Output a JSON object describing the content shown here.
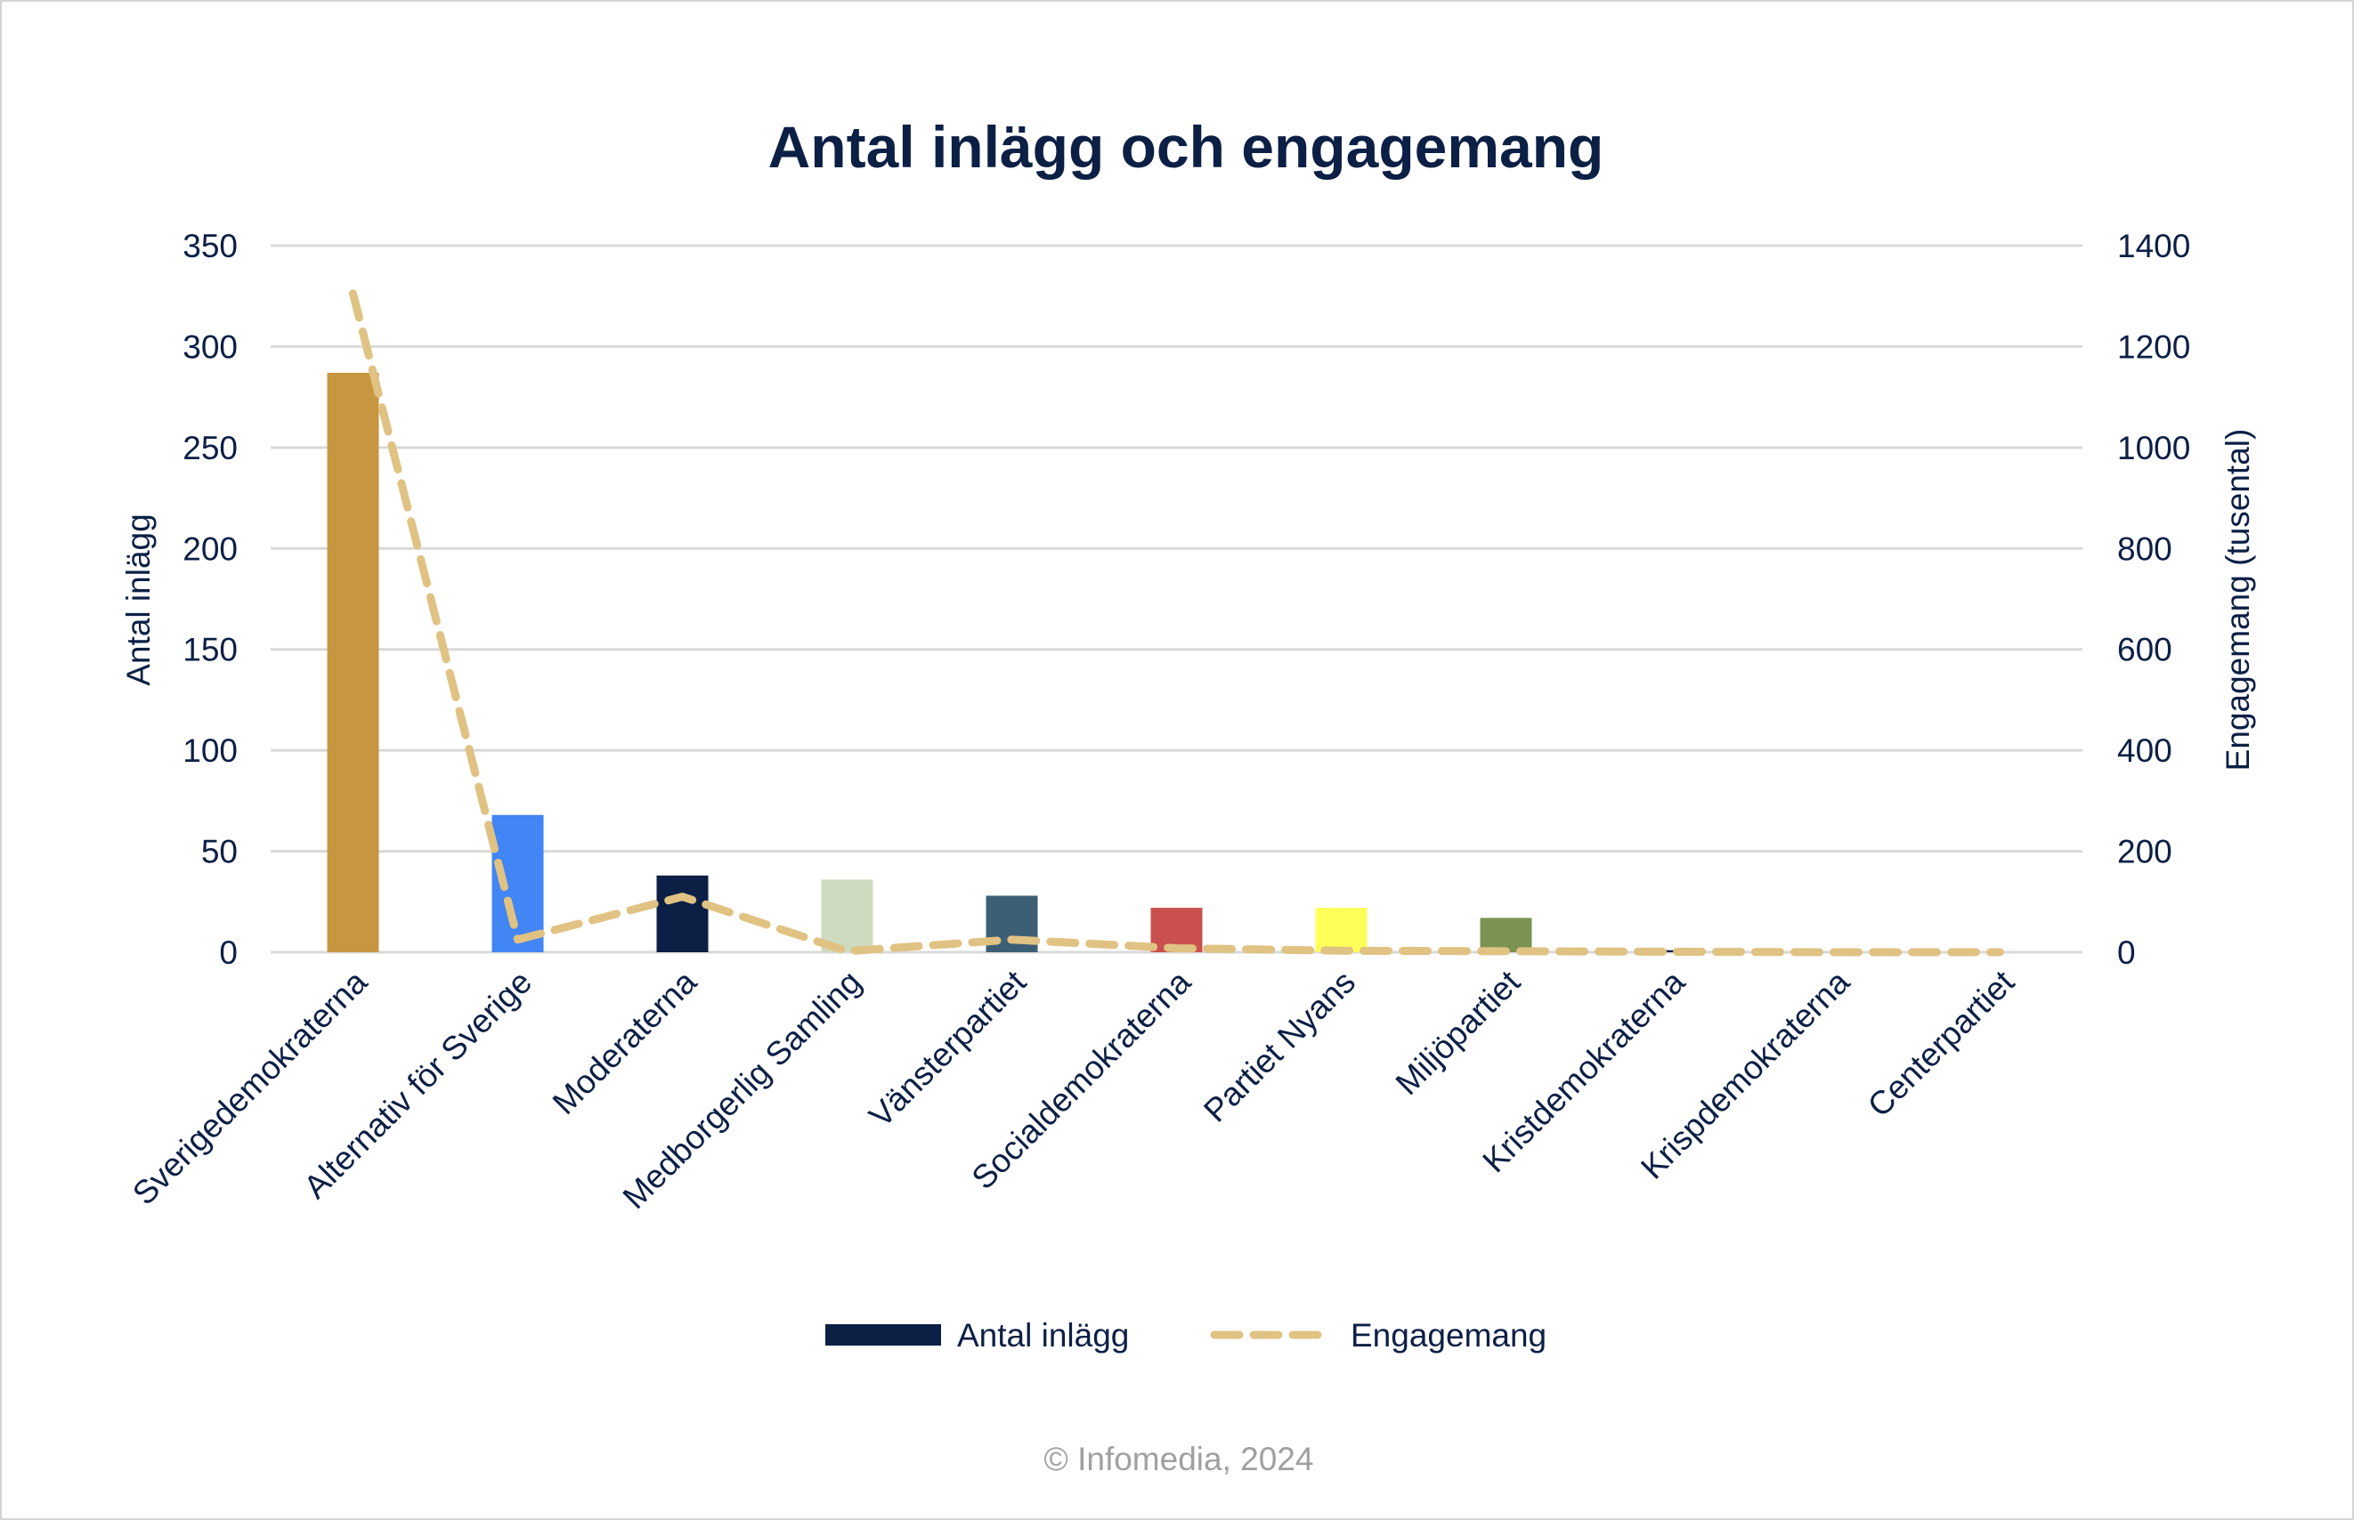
{
  "chart_data": {
    "type": "bar",
    "title": "Antal inlägg och engagemang",
    "categories": [
      "Sverigedemokraterna",
      "Alternativ för Sverige",
      "Moderaterna",
      "Medborgerlig Samling",
      "Vänsterpartiet",
      "Socialdemokraterna",
      "Partiet Nyans",
      "Miljöpartiet",
      "Kristdemokraterna",
      "Krispdemokraterna",
      "Centerpartiet"
    ],
    "series": [
      {
        "name": "Antal inlägg",
        "type": "bar",
        "axis": "left",
        "values": [
          287,
          68,
          38,
          36,
          28,
          22,
          22,
          17,
          1,
          0,
          0
        ],
        "bar_colors": [
          "#c89640",
          "#4285f4",
          "#0c1f45",
          "#cfdbc0",
          "#3d5f75",
          "#c9504c",
          "#ffff5a",
          "#7a9352",
          "#0c1f45",
          "#0c1f45",
          "#0c1f45"
        ]
      },
      {
        "name": "Engagemang",
        "type": "line",
        "style": "dashed",
        "axis": "right",
        "color": "#e0c283",
        "values": [
          1305,
          25,
          110,
          2,
          25,
          8,
          3,
          2,
          1,
          0,
          0
        ]
      }
    ],
    "ylabel": "Antal inlägg",
    "ylabel_right": "Engagemang (tusental)",
    "ylim": [
      0,
      350
    ],
    "yticks": [
      0,
      50,
      100,
      150,
      200,
      250,
      300,
      350
    ],
    "ylim_right": [
      0,
      1400
    ],
    "yticks_right": [
      0,
      200,
      400,
      600,
      800,
      1000,
      1200,
      1400
    ],
    "grid": true,
    "legend_position": "bottom",
    "legend_swatch_color": "#0c1f45"
  },
  "footer": {
    "credit": "© Infomedia, 2024"
  }
}
